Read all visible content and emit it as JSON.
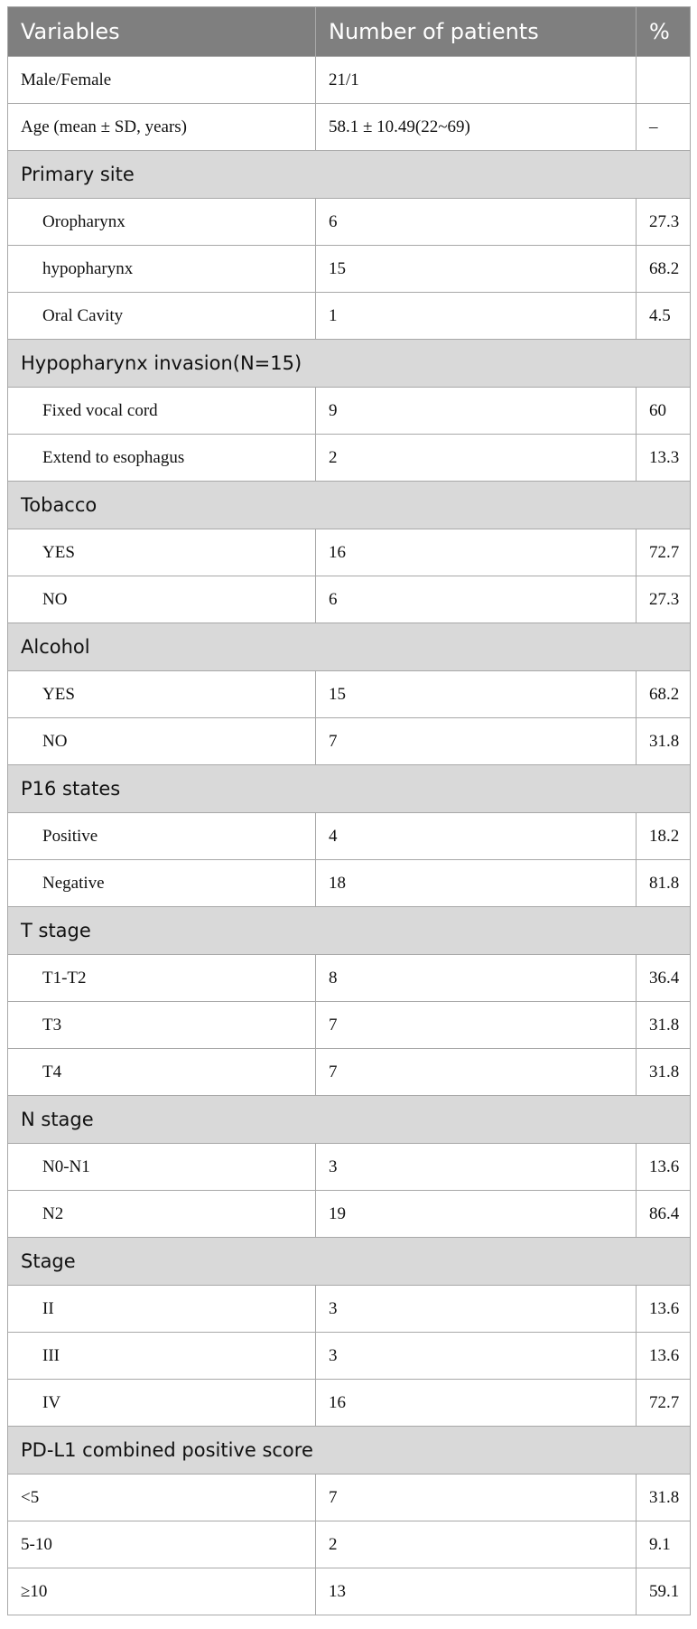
{
  "table": {
    "headers": [
      "Variables",
      "Number of patients",
      "%"
    ],
    "rows": [
      {
        "type": "data",
        "label": "Male/Female",
        "value": "21/1",
        "pct": ""
      },
      {
        "type": "data",
        "label": "Age (mean ± SD, years)",
        "value": "58.1 ± 10.49(22~69)",
        "pct": "–"
      },
      {
        "type": "section",
        "label": "Primary site"
      },
      {
        "type": "data",
        "indent": true,
        "label": "Oropharynx",
        "value": "6",
        "pct": "27.3"
      },
      {
        "type": "data",
        "indent": true,
        "label": "hypopharynx",
        "value": "15",
        "pct": "68.2"
      },
      {
        "type": "data",
        "indent": true,
        "label": "Oral Cavity",
        "value": "1",
        "pct": "4.5"
      },
      {
        "type": "section",
        "label": "Hypopharynx invasion(N=15)"
      },
      {
        "type": "data",
        "indent": true,
        "label": "Fixed vocal cord",
        "value": "9",
        "pct": "60"
      },
      {
        "type": "data",
        "indent": true,
        "label": "Extend to esophagus",
        "value": "2",
        "pct": "13.3"
      },
      {
        "type": "section",
        "label": "Tobacco"
      },
      {
        "type": "data",
        "indent": true,
        "label": "YES",
        "value": "16",
        "pct": "72.7"
      },
      {
        "type": "data",
        "indent": true,
        "label": "NO",
        "value": "6",
        "pct": "27.3"
      },
      {
        "type": "section",
        "label": "Alcohol"
      },
      {
        "type": "data",
        "indent": true,
        "label": "YES",
        "value": "15",
        "pct": "68.2"
      },
      {
        "type": "data",
        "indent": true,
        "label": "NO",
        "value": "7",
        "pct": "31.8"
      },
      {
        "type": "section",
        "label": "P16 states"
      },
      {
        "type": "data",
        "indent": true,
        "label": "Positive",
        "value": "4",
        "pct": "18.2"
      },
      {
        "type": "data",
        "indent": true,
        "label": "Negative",
        "value": "18",
        "pct": "81.8"
      },
      {
        "type": "section",
        "label": "T stage"
      },
      {
        "type": "data",
        "indent": true,
        "label": "T1-T2",
        "value": "8",
        "pct": "36.4"
      },
      {
        "type": "data",
        "indent": true,
        "label": "T3",
        "value": "7",
        "pct": "31.8"
      },
      {
        "type": "data",
        "indent": true,
        "label": "T4",
        "value": "7",
        "pct": "31.8"
      },
      {
        "type": "section",
        "label": "N stage"
      },
      {
        "type": "data",
        "indent": true,
        "label": "N0-N1",
        "value": "3",
        "pct": "13.6"
      },
      {
        "type": "data",
        "indent": true,
        "label": "N2",
        "value": "19",
        "pct": "86.4"
      },
      {
        "type": "section",
        "label": "Stage"
      },
      {
        "type": "data",
        "indent": true,
        "label": "II",
        "value": "3",
        "pct": "13.6"
      },
      {
        "type": "data",
        "indent": true,
        "label": "III",
        "value": "3",
        "pct": "13.6"
      },
      {
        "type": "data",
        "indent": true,
        "label": "IV",
        "value": "16",
        "pct": "72.7"
      },
      {
        "type": "section",
        "label": "PD-L1 combined positive score"
      },
      {
        "type": "data",
        "label": "<5",
        "value": "7",
        "pct": "31.8"
      },
      {
        "type": "data",
        "label": "5-10",
        "value": "2",
        "pct": "9.1"
      },
      {
        "type": "data",
        "label": "≥10",
        "value": "13",
        "pct": "59.1"
      }
    ]
  }
}
